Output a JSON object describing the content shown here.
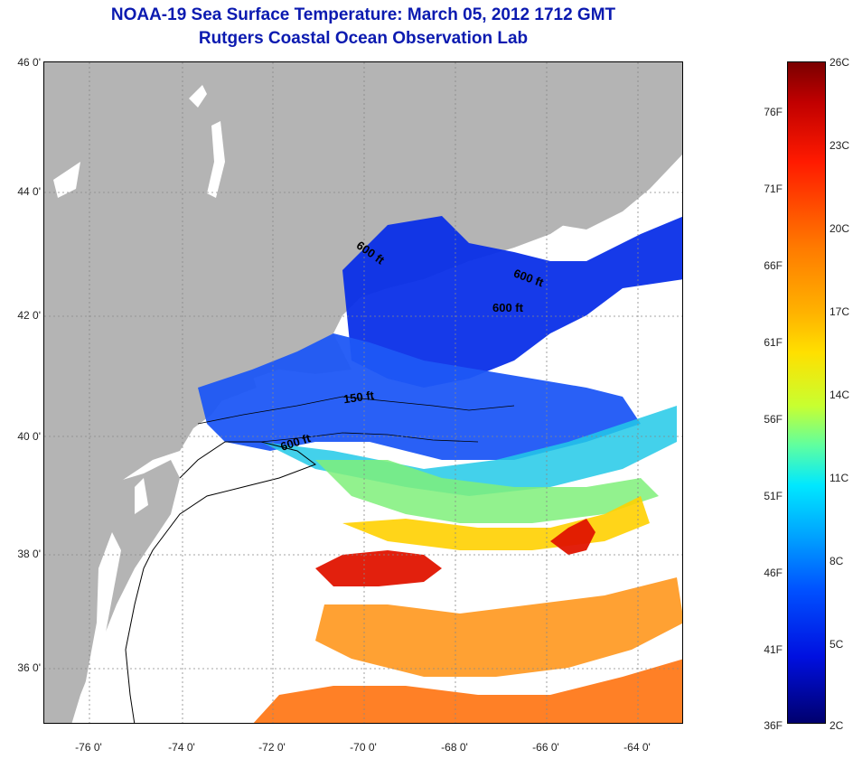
{
  "title": {
    "line1": "NOAA-19 Sea Surface Temperature:  March 05, 2012 1712 GMT",
    "line2": "Rutgers Coastal Ocean Observation Lab"
  },
  "map": {
    "lon_range": [
      -77,
      -63
    ],
    "lat_range": [
      35,
      46
    ],
    "latitude_labels": [
      "46 0'",
      "44 0'",
      "42 0'",
      "40 0'",
      "38 0'",
      "36 0'"
    ],
    "longitude_labels": [
      "-76 0'",
      "-74 0'",
      "-72 0'",
      "-70 0'",
      "-68 0'",
      "-66 0'",
      "-64 0'"
    ],
    "land_color": "#b4b4b4",
    "grid": "dotted",
    "contour_labels": [
      "600 ft",
      "600 ft",
      "600 ft",
      "150 ft",
      "600 ft"
    ]
  },
  "colorbar": {
    "fahrenheit_labels": [
      "76F",
      "71F",
      "66F",
      "61F",
      "56F",
      "51F",
      "46F",
      "41F",
      "36F"
    ],
    "celsius_labels": [
      "26C",
      "23C",
      "20C",
      "17C",
      "14C",
      "11C",
      "8C",
      "5C",
      "2C"
    ],
    "range_c": [
      2,
      26
    ],
    "colormap": "jet"
  }
}
